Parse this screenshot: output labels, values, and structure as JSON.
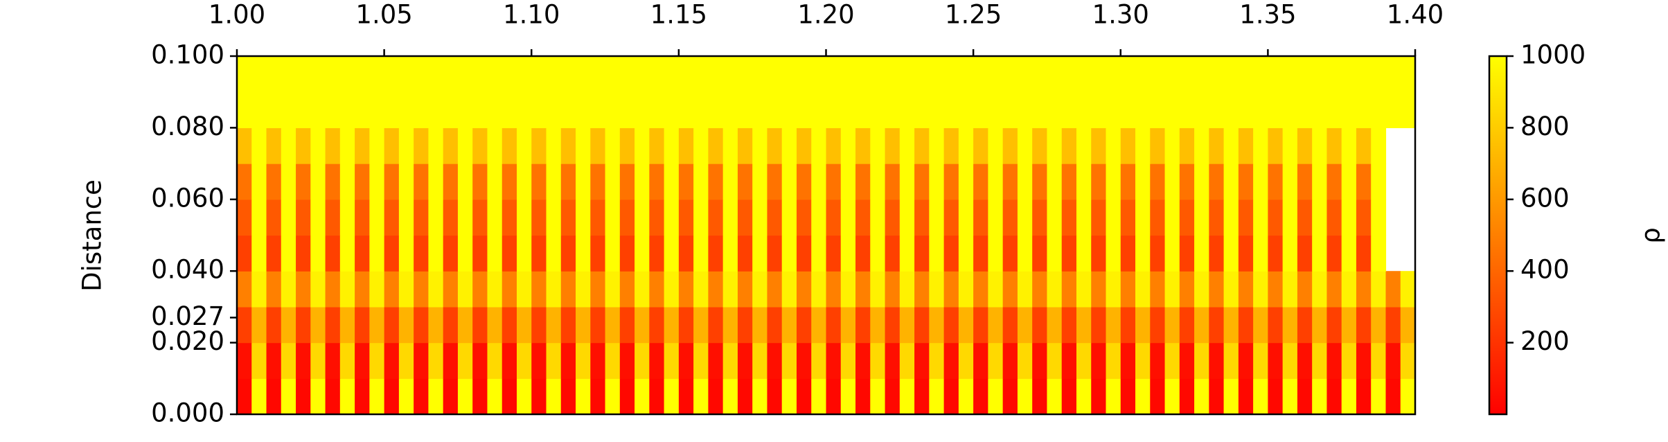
{
  "chart_data": {
    "type": "heatmap",
    "ylabel": "Distance",
    "x_edges": [
      1,
      1.005,
      1.01,
      1.015,
      1.02,
      1.025,
      1.03,
      1.035,
      1.04,
      1.045,
      1.05,
      1.055,
      1.06,
      1.065,
      1.07,
      1.075,
      1.08,
      1.085,
      1.09,
      1.095,
      1.1,
      1.105,
      1.11,
      1.115,
      1.12,
      1.125,
      1.13,
      1.135,
      1.14,
      1.145,
      1.15,
      1.155,
      1.16,
      1.165,
      1.17,
      1.175,
      1.18,
      1.185,
      1.19,
      1.195,
      1.2,
      1.205,
      1.21,
      1.215,
      1.22,
      1.225,
      1.23,
      1.235,
      1.24,
      1.245,
      1.25,
      1.255,
      1.26,
      1.265,
      1.27,
      1.275,
      1.28,
      1.285,
      1.29,
      1.295,
      1.3,
      1.305,
      1.31,
      1.315,
      1.32,
      1.325,
      1.33,
      1.335,
      1.34,
      1.345,
      1.35,
      1.355,
      1.36,
      1.365,
      1.37,
      1.375,
      1.38,
      1.385,
      1.39,
      1.395,
      1.4
    ],
    "y_edges": [
      0,
      0.01,
      0.02,
      0.03,
      0.04,
      0.05,
      0.06,
      0.07,
      0.08,
      0.09,
      0.1
    ],
    "z": [
      [
        30,
        1000,
        30,
        1000,
        30,
        1000,
        30,
        1000,
        30,
        1000,
        30,
        1000,
        30,
        1000,
        30,
        1000,
        30,
        1000,
        30,
        1000,
        30,
        1000,
        30,
        1000,
        30,
        1000,
        30,
        1000,
        30,
        1000,
        30,
        1000,
        30,
        1000,
        30,
        1000,
        30,
        1000,
        30,
        1000,
        30,
        1000,
        30,
        1000,
        30,
        1000,
        30,
        1000,
        30,
        1000,
        30,
        1000,
        30,
        1000,
        30,
        1000,
        30,
        1000,
        30,
        1000,
        30,
        1000,
        30,
        1000,
        30,
        1000,
        30,
        1000,
        30,
        1000,
        30,
        1000,
        30,
        1000,
        30,
        1000,
        30,
        1000,
        30,
        1000
      ],
      [
        60,
        850,
        60,
        850,
        60,
        850,
        60,
        850,
        60,
        850,
        60,
        850,
        60,
        850,
        60,
        850,
        60,
        850,
        60,
        850,
        60,
        850,
        60,
        850,
        60,
        850,
        60,
        850,
        60,
        850,
        60,
        850,
        60,
        850,
        60,
        850,
        60,
        850,
        60,
        850,
        60,
        850,
        60,
        850,
        60,
        850,
        60,
        850,
        60,
        850,
        60,
        850,
        60,
        850,
        60,
        850,
        60,
        850,
        60,
        850,
        60,
        850,
        60,
        850,
        60,
        850,
        60,
        850,
        60,
        850,
        60,
        850,
        60,
        850,
        60,
        850,
        60,
        850,
        60,
        850
      ],
      [
        250,
        700,
        250,
        700,
        250,
        700,
        250,
        700,
        250,
        700,
        250,
        700,
        250,
        700,
        250,
        700,
        250,
        700,
        250,
        700,
        250,
        700,
        250,
        700,
        250,
        700,
        250,
        700,
        250,
        700,
        250,
        700,
        250,
        700,
        250,
        700,
        250,
        700,
        250,
        700,
        250,
        700,
        250,
        700,
        250,
        700,
        250,
        700,
        250,
        700,
        250,
        700,
        250,
        700,
        250,
        700,
        250,
        700,
        250,
        700,
        250,
        700,
        250,
        700,
        250,
        700,
        250,
        700,
        250,
        700,
        250,
        700,
        250,
        700,
        250,
        700,
        250,
        700,
        250,
        700
      ],
      [
        500,
        950,
        500,
        950,
        500,
        950,
        500,
        950,
        500,
        950,
        500,
        950,
        500,
        950,
        500,
        950,
        500,
        950,
        500,
        950,
        500,
        950,
        500,
        950,
        500,
        950,
        500,
        950,
        500,
        950,
        500,
        950,
        500,
        950,
        500,
        950,
        500,
        950,
        500,
        950,
        500,
        950,
        500,
        950,
        500,
        950,
        500,
        950,
        500,
        950,
        500,
        950,
        500,
        950,
        500,
        950,
        500,
        950,
        500,
        950,
        500,
        950,
        500,
        950,
        500,
        950,
        500,
        950,
        500,
        950,
        500,
        950,
        500,
        950,
        500,
        950,
        500,
        950,
        500,
        950
      ],
      [
        250,
        1000,
        250,
        1000,
        250,
        1000,
        250,
        1000,
        250,
        1000,
        250,
        1000,
        250,
        1000,
        250,
        1000,
        250,
        1000,
        250,
        1000,
        250,
        1000,
        250,
        1000,
        250,
        1000,
        250,
        1000,
        250,
        1000,
        250,
        1000,
        250,
        1000,
        250,
        1000,
        250,
        1000,
        250,
        1000,
        250,
        1000,
        250,
        1000,
        250,
        1000,
        250,
        1000,
        250,
        1000,
        250,
        1000,
        250,
        1000,
        250,
        1000,
        250,
        1000,
        250,
        1000,
        250,
        1000,
        250,
        1000,
        250,
        1000,
        250,
        1000,
        250,
        1000,
        250,
        1000,
        250,
        1000,
        250,
        1000,
        250,
        1000
      ],
      [
        350,
        1000,
        350,
        1000,
        350,
        1000,
        350,
        1000,
        350,
        1000,
        350,
        1000,
        350,
        1000,
        350,
        1000,
        350,
        1000,
        350,
        1000,
        350,
        1000,
        350,
        1000,
        350,
        1000,
        350,
        1000,
        350,
        1000,
        350,
        1000,
        350,
        1000,
        350,
        1000,
        350,
        1000,
        350,
        1000,
        350,
        1000,
        350,
        1000,
        350,
        1000,
        350,
        1000,
        350,
        1000,
        350,
        1000,
        350,
        1000,
        350,
        1000,
        350,
        1000,
        350,
        1000,
        350,
        1000,
        350,
        1000,
        350,
        1000,
        350,
        1000,
        350,
        1000,
        350,
        1000,
        350,
        1000,
        350,
        1000,
        350,
        1000
      ],
      [
        450,
        1000,
        450,
        1000,
        450,
        1000,
        450,
        1000,
        450,
        1000,
        450,
        1000,
        450,
        1000,
        450,
        1000,
        450,
        1000,
        450,
        1000,
        450,
        1000,
        450,
        1000,
        450,
        1000,
        450,
        1000,
        450,
        1000,
        450,
        1000,
        450,
        1000,
        450,
        1000,
        450,
        1000,
        450,
        1000,
        450,
        1000,
        450,
        1000,
        450,
        1000,
        450,
        1000,
        450,
        1000,
        450,
        1000,
        450,
        1000,
        450,
        1000,
        450,
        1000,
        450,
        1000,
        450,
        1000,
        450,
        1000,
        450,
        1000,
        450,
        1000,
        450,
        1000,
        450,
        1000,
        450,
        1000,
        450,
        1000,
        450,
        1000
      ],
      [
        750,
        1000,
        750,
        1000,
        750,
        1000,
        750,
        1000,
        750,
        1000,
        750,
        1000,
        750,
        1000,
        750,
        1000,
        750,
        1000,
        750,
        1000,
        750,
        1000,
        750,
        1000,
        750,
        1000,
        750,
        1000,
        750,
        1000,
        750,
        1000,
        750,
        1000,
        750,
        1000,
        750,
        1000,
        750,
        1000,
        750,
        1000,
        750,
        1000,
        750,
        1000,
        750,
        1000,
        750,
        1000,
        750,
        1000,
        750,
        1000,
        750,
        1000,
        750,
        1000,
        750,
        1000,
        750,
        1000,
        750,
        1000,
        750,
        1000,
        750,
        1000,
        750,
        1000,
        750,
        1000,
        750,
        1000,
        750,
        1000,
        750,
        1000
      ],
      [
        1000,
        1000,
        1000,
        1000,
        1000,
        1000,
        1000,
        1000,
        1000,
        1000,
        1000,
        1000,
        1000,
        1000,
        1000,
        1000,
        1000,
        1000,
        1000,
        1000,
        1000,
        1000,
        1000,
        1000,
        1000,
        1000,
        1000,
        1000,
        1000,
        1000,
        1000,
        1000,
        1000,
        1000,
        1000,
        1000,
        1000,
        1000,
        1000,
        1000,
        1000,
        1000,
        1000,
        1000,
        1000,
        1000,
        1000,
        1000,
        1000,
        1000,
        1000,
        1000,
        1000,
        1000,
        1000,
        1000,
        1000,
        1000,
        1000,
        1000,
        1000,
        1000,
        1000,
        1000,
        1000,
        1000,
        1000,
        1000,
        1000,
        1000,
        1000,
        1000,
        1000,
        1000,
        1000,
        1000,
        1000,
        1000,
        1000,
        1000
      ],
      [
        1000,
        1000,
        1000,
        1000,
        1000,
        1000,
        1000,
        1000,
        1000,
        1000,
        1000,
        1000,
        1000,
        1000,
        1000,
        1000,
        1000,
        1000,
        1000,
        1000,
        1000,
        1000,
        1000,
        1000,
        1000,
        1000,
        1000,
        1000,
        1000,
        1000,
        1000,
        1000,
        1000,
        1000,
        1000,
        1000,
        1000,
        1000,
        1000,
        1000,
        1000,
        1000,
        1000,
        1000,
        1000,
        1000,
        1000,
        1000,
        1000,
        1000,
        1000,
        1000,
        1000,
        1000,
        1000,
        1000,
        1000,
        1000,
        1000,
        1000,
        1000,
        1000,
        1000,
        1000,
        1000,
        1000,
        1000,
        1000,
        1000,
        1000,
        1000,
        1000,
        1000,
        1000,
        1000,
        1000,
        1000,
        1000,
        1000,
        1000
      ]
    ],
    "xlim": [
      1,
      1.4
    ],
    "ylim": [
      0,
      0.1
    ],
    "xticks": [
      {
        "value": 1,
        "label": "1.00"
      },
      1.05,
      {
        "value": 1.1,
        "label": "1.10"
      },
      1.15,
      {
        "value": 1.2,
        "label": "1.20"
      },
      1.25,
      {
        "value": 1.3,
        "label": "1.30"
      },
      1.35,
      {
        "value": 1.4,
        "label": "1.40"
      }
    ],
    "yticks": [
      {
        "value": 0,
        "label": "0.000"
      },
      {
        "value": 0.02,
        "label": "0.020"
      },
      {
        "value": 0.027,
        "label": "0.027"
      },
      {
        "value": 0.04,
        "label": "0.040"
      },
      {
        "value": 0.06,
        "label": "0.060"
      },
      {
        "value": 0.08,
        "label": "0.080"
      },
      {
        "value": 0.1,
        "label": "0.100"
      }
    ],
    "colormap": [
      "#ff0000",
      "#ffff00"
    ],
    "colorbar": {
      "label": "ρ",
      "clim": [
        0,
        1000
      ],
      "ticks": [
        200,
        400,
        600,
        800,
        1000
      ]
    }
  }
}
